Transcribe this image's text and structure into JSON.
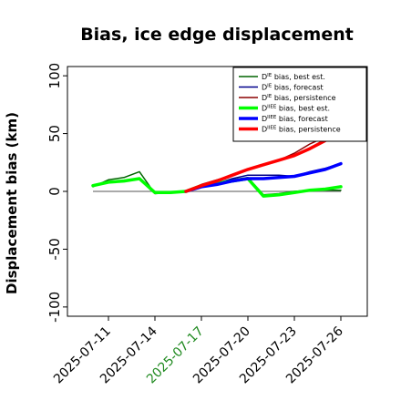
{
  "chart_data": {
    "type": "line",
    "title": "Bias, ice edge displacement",
    "xlabel": "",
    "ylabel": "Displacement bias (km)",
    "ylim": [
      -108,
      108
    ],
    "yticks": [
      -100,
      -50,
      0,
      50,
      100
    ],
    "x_tick_labels": [
      "2025-07-11",
      "2025-07-14",
      "2025-07-17",
      "2025-07-20",
      "2025-07-23",
      "2025-07-26"
    ],
    "highlight_tick_label": "2025-07-17",
    "highlight_color": "#228b22",
    "grid": false,
    "legend_placement": "top-right",
    "zero_line": true,
    "series": [
      {
        "legend": {
          "pre": "D",
          "sup": "IE",
          "post": " bias, best est."
        },
        "color": "#006400",
        "width": 1.5,
        "x": [
          "2025-07-10",
          "2025-07-11",
          "2025-07-12",
          "2025-07-13",
          "2025-07-14",
          "2025-07-15",
          "2025-07-16",
          "2025-07-17",
          "2025-07-18",
          "2025-07-19",
          "2025-07-20",
          "2025-07-21",
          "2025-07-22",
          "2025-07-23",
          "2025-07-24",
          "2025-07-25",
          "2025-07-26"
        ],
        "values": [
          4,
          10,
          12,
          17,
          -2,
          -1,
          0,
          5,
          7,
          10,
          12,
          -3,
          -2,
          0,
          1,
          1,
          1
        ]
      },
      {
        "legend": {
          "pre": "D",
          "sup": "IE",
          "post": " bias, forecast"
        },
        "color": "#00008b",
        "width": 1.5,
        "x": [
          "2025-07-16",
          "2025-07-17",
          "2025-07-18",
          "2025-07-19",
          "2025-07-20",
          "2025-07-21",
          "2025-07-22",
          "2025-07-23",
          "2025-07-24",
          "2025-07-25",
          "2025-07-26"
        ],
        "values": [
          0,
          4,
          7,
          11,
          14,
          14,
          14,
          13,
          17,
          20,
          24
        ]
      },
      {
        "legend": {
          "pre": "D",
          "sup": "IE",
          "post": " bias, persistence"
        },
        "color": "#8b0000",
        "width": 1.5,
        "x": [
          "2025-07-16",
          "2025-07-17",
          "2025-07-18",
          "2025-07-19",
          "2025-07-20",
          "2025-07-21",
          "2025-07-22",
          "2025-07-23",
          "2025-07-24",
          "2025-07-25",
          "2025-07-26"
        ],
        "values": [
          0,
          6,
          10,
          14,
          19,
          23,
          27,
          33,
          41,
          47,
          54
        ]
      },
      {
        "legend": {
          "pre": "D",
          "sup": "IIEE",
          "post": " bias, best est."
        },
        "color": "#00ff00",
        "width": 3.5,
        "x": [
          "2025-07-10",
          "2025-07-11",
          "2025-07-12",
          "2025-07-13",
          "2025-07-14",
          "2025-07-15",
          "2025-07-16",
          "2025-07-17",
          "2025-07-18",
          "2025-07-19",
          "2025-07-20",
          "2025-07-21",
          "2025-07-22",
          "2025-07-23",
          "2025-07-24",
          "2025-07-25",
          "2025-07-26"
        ],
        "values": [
          5,
          8,
          9,
          11,
          -1,
          -1,
          0,
          5,
          7,
          9,
          11,
          -4,
          -3,
          -1,
          1,
          2,
          4
        ]
      },
      {
        "legend": {
          "pre": "D",
          "sup": "IIEE",
          "post": " bias, forecast"
        },
        "color": "#0000ff",
        "width": 3.5,
        "x": [
          "2025-07-16",
          "2025-07-17",
          "2025-07-18",
          "2025-07-19",
          "2025-07-20",
          "2025-07-21",
          "2025-07-22",
          "2025-07-23",
          "2025-07-24",
          "2025-07-25",
          "2025-07-26"
        ],
        "values": [
          0,
          4,
          6,
          9,
          11,
          11,
          12,
          13,
          16,
          19,
          24
        ]
      },
      {
        "legend": {
          "pre": "D",
          "sup": "IIEE",
          "post": " bias, persistence"
        },
        "color": "#ff0000",
        "width": 3.5,
        "x": [
          "2025-07-16",
          "2025-07-17",
          "2025-07-18",
          "2025-07-19",
          "2025-07-20",
          "2025-07-21",
          "2025-07-22",
          "2025-07-23",
          "2025-07-24",
          "2025-07-25",
          "2025-07-26"
        ],
        "values": [
          0,
          5,
          9,
          14,
          19,
          23,
          27,
          31,
          37,
          44,
          50
        ]
      }
    ]
  }
}
